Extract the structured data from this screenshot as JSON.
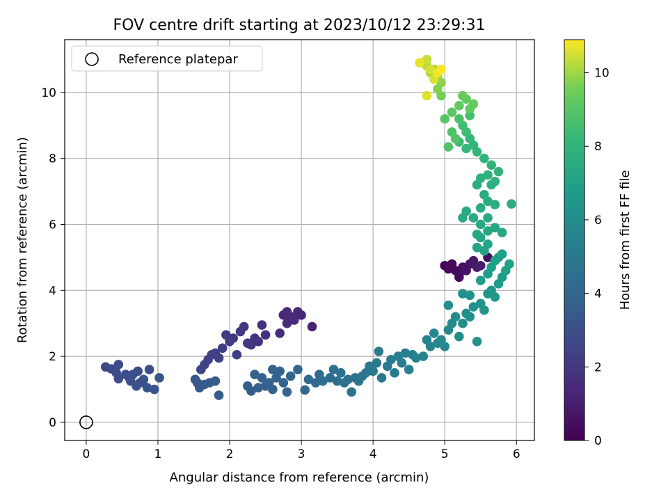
{
  "chart_data": {
    "type": "scatter",
    "title": "FOV centre drift starting at 2023/10/12 23:29:31",
    "xlabel": "Angular distance from reference (arcmin)",
    "ylabel": "Rotation from reference (arcmin)",
    "xlim": [
      -0.3,
      6.25
    ],
    "ylim": [
      -0.55,
      11.6
    ],
    "xticks": [
      0,
      1,
      2,
      3,
      4,
      5,
      6
    ],
    "yticks": [
      0,
      2,
      4,
      6,
      8,
      10
    ],
    "grid": true,
    "legend": {
      "placement": "top-left",
      "entries": [
        "Reference platepar"
      ]
    },
    "reference_point": {
      "x": 0,
      "y": 0,
      "label": "Reference platepar"
    },
    "colorbar": {
      "label": "Hours from first FF file",
      "range": [
        0,
        10.9
      ],
      "ticks": [
        0,
        2,
        4,
        6,
        8,
        10
      ],
      "colormap": "viridis"
    },
    "points_xyc": [
      [
        5.0,
        4.75,
        0.1
      ],
      [
        5.1,
        4.8,
        0.2
      ],
      [
        5.15,
        4.6,
        0.3
      ],
      [
        5.2,
        4.5,
        0.4
      ],
      [
        5.25,
        4.7,
        0.5
      ],
      [
        5.3,
        4.6,
        0.6
      ],
      [
        5.35,
        4.8,
        0.7
      ],
      [
        5.4,
        4.9,
        0.8
      ],
      [
        5.45,
        4.7,
        0.9
      ],
      [
        5.5,
        4.75,
        1.0
      ],
      [
        5.6,
        5.0,
        0.5
      ],
      [
        5.2,
        4.4,
        0.3
      ],
      [
        5.05,
        4.65,
        0.2
      ],
      [
        3.15,
        2.9,
        1.2
      ],
      [
        3.0,
        3.25,
        1.3
      ],
      [
        2.95,
        3.35,
        1.35
      ],
      [
        2.85,
        3.2,
        1.4
      ],
      [
        2.8,
        3.35,
        1.45
      ],
      [
        2.75,
        3.25,
        1.5
      ],
      [
        2.8,
        3.0,
        1.55
      ],
      [
        2.7,
        2.7,
        1.6
      ],
      [
        2.9,
        3.1,
        1.5
      ],
      [
        2.5,
        2.65,
        1.7
      ],
      [
        2.45,
        2.95,
        1.75
      ],
      [
        2.4,
        2.45,
        1.8
      ],
      [
        2.35,
        2.55,
        1.85
      ],
      [
        2.3,
        2.35,
        1.9
      ],
      [
        2.25,
        2.4,
        1.95
      ],
      [
        2.2,
        2.9,
        2.0
      ],
      [
        2.15,
        2.75,
        2.05
      ],
      [
        2.05,
        2.55,
        2.1
      ],
      [
        1.95,
        2.65,
        2.15
      ],
      [
        2.0,
        2.45,
        2.2
      ],
      [
        2.1,
        2.05,
        2.25
      ],
      [
        1.9,
        2.25,
        2.3
      ],
      [
        1.85,
        1.95,
        2.35
      ],
      [
        1.75,
        2.05,
        2.4
      ],
      [
        1.7,
        1.9,
        2.45
      ],
      [
        1.65,
        1.75,
        2.5
      ],
      [
        1.6,
        1.6,
        2.55
      ],
      [
        1.8,
        2.1,
        2.4
      ],
      [
        0.27,
        1.68,
        2.6
      ],
      [
        0.35,
        1.62,
        2.65
      ],
      [
        0.45,
        1.75,
        2.7
      ],
      [
        0.42,
        1.5,
        2.75
      ],
      [
        0.45,
        1.32,
        2.8
      ],
      [
        0.55,
        1.45,
        2.85
      ],
      [
        0.6,
        1.35,
        2.9
      ],
      [
        0.62,
        1.25,
        2.95
      ],
      [
        0.7,
        1.1,
        3.0
      ],
      [
        0.72,
        1.55,
        2.9
      ],
      [
        0.75,
        1.2,
        3.05
      ],
      [
        0.8,
        1.3,
        3.1
      ],
      [
        0.85,
        1.05,
        3.15
      ],
      [
        0.88,
        1.6,
        2.9
      ],
      [
        0.95,
        1.0,
        3.2
      ],
      [
        1.02,
        1.35,
        3.25
      ],
      [
        0.65,
        1.45,
        2.9
      ],
      [
        1.52,
        1.3,
        3.3
      ],
      [
        1.55,
        1.2,
        3.35
      ],
      [
        1.58,
        1.05,
        3.4
      ],
      [
        1.65,
        1.15,
        3.45
      ],
      [
        1.72,
        1.2,
        3.5
      ],
      [
        1.8,
        1.25,
        3.5
      ],
      [
        1.85,
        0.82,
        3.55
      ],
      [
        2.25,
        1.1,
        3.6
      ],
      [
        2.3,
        0.95,
        3.65
      ],
      [
        2.4,
        1.05,
        3.7
      ],
      [
        2.45,
        1.35,
        3.7
      ],
      [
        2.5,
        1.1,
        3.75
      ],
      [
        2.55,
        1.2,
        3.8
      ],
      [
        2.6,
        1.0,
        3.85
      ],
      [
        2.65,
        1.35,
        3.85
      ],
      [
        2.7,
        1.55,
        3.9
      ],
      [
        2.75,
        1.2,
        3.95
      ],
      [
        2.8,
        0.92,
        4.0
      ],
      [
        2.6,
        1.6,
        3.9
      ],
      [
        2.35,
        1.45,
        3.75
      ],
      [
        2.85,
        1.4,
        4.0
      ],
      [
        2.95,
        1.6,
        4.05
      ],
      [
        3.05,
        0.98,
        4.1
      ],
      [
        3.1,
        1.3,
        4.15
      ],
      [
        3.2,
        1.2,
        4.2
      ],
      [
        3.25,
        1.45,
        4.25
      ],
      [
        3.3,
        1.25,
        4.3
      ],
      [
        3.4,
        1.35,
        4.35
      ],
      [
        3.45,
        1.6,
        4.4
      ],
      [
        3.5,
        1.25,
        4.45
      ],
      [
        3.55,
        1.5,
        4.5
      ],
      [
        3.6,
        1.2,
        4.55
      ],
      [
        3.65,
        1.3,
        4.6
      ],
      [
        3.7,
        0.92,
        4.6
      ],
      [
        3.75,
        1.35,
        4.65
      ],
      [
        3.8,
        1.25,
        4.7
      ],
      [
        3.85,
        1.4,
        4.75
      ],
      [
        3.9,
        1.5,
        4.8
      ],
      [
        3.95,
        1.7,
        4.85
      ],
      [
        4.0,
        1.55,
        4.9
      ],
      [
        4.05,
        1.8,
        4.95
      ],
      [
        4.08,
        2.15,
        5.0
      ],
      [
        4.12,
        1.35,
        5.0
      ],
      [
        4.2,
        1.7,
        5.05
      ],
      [
        4.25,
        1.9,
        5.1
      ],
      [
        4.3,
        1.5,
        5.15
      ],
      [
        4.35,
        2.0,
        5.2
      ],
      [
        4.4,
        1.8,
        5.25
      ],
      [
        4.45,
        2.1,
        5.3
      ],
      [
        4.5,
        1.6,
        5.35
      ],
      [
        4.55,
        2.05,
        5.4
      ],
      [
        4.6,
        1.95,
        5.45
      ],
      [
        4.7,
        2.0,
        5.5
      ],
      [
        4.75,
        2.5,
        5.55
      ],
      [
        4.8,
        2.3,
        5.6
      ],
      [
        4.85,
        2.7,
        5.65
      ],
      [
        4.9,
        2.4,
        5.7
      ],
      [
        4.95,
        2.5,
        5.75
      ],
      [
        5.0,
        2.3,
        5.8
      ],
      [
        5.05,
        2.8,
        5.85
      ],
      [
        5.1,
        3.0,
        5.9
      ],
      [
        5.15,
        3.2,
        5.95
      ],
      [
        5.2,
        2.6,
        6.0
      ],
      [
        5.25,
        3.0,
        6.05
      ],
      [
        5.3,
        3.3,
        6.1
      ],
      [
        5.35,
        3.2,
        6.15
      ],
      [
        5.4,
        3.5,
        6.2
      ],
      [
        5.45,
        2.45,
        6.25
      ],
      [
        5.5,
        3.6,
        6.3
      ],
      [
        5.55,
        3.4,
        6.35
      ],
      [
        5.6,
        3.9,
        6.4
      ],
      [
        5.65,
        4.0,
        6.45
      ],
      [
        5.7,
        3.8,
        6.5
      ],
      [
        5.75,
        4.2,
        6.55
      ],
      [
        5.8,
        4.4,
        6.6
      ],
      [
        5.35,
        3.85,
        6.3
      ],
      [
        5.05,
        3.55,
        6.05
      ],
      [
        5.25,
        3.9,
        6.15
      ],
      [
        5.5,
        4.3,
        6.7
      ],
      [
        5.6,
        4.5,
        6.75
      ],
      [
        5.65,
        4.7,
        6.8
      ],
      [
        5.7,
        4.9,
        6.85
      ],
      [
        5.75,
        5.0,
        6.9
      ],
      [
        5.8,
        5.1,
        6.95
      ],
      [
        5.9,
        4.8,
        7.0
      ],
      [
        5.85,
        4.6,
        7.0
      ],
      [
        5.55,
        5.2,
        7.05
      ],
      [
        5.45,
        5.3,
        7.1
      ],
      [
        5.6,
        5.4,
        7.15
      ],
      [
        5.5,
        5.6,
        7.2
      ],
      [
        5.6,
        5.8,
        7.25
      ],
      [
        5.7,
        5.9,
        7.3
      ],
      [
        5.8,
        5.75,
        7.3
      ],
      [
        5.5,
        6.0,
        7.35
      ],
      [
        5.4,
        6.2,
        7.4
      ],
      [
        5.45,
        5.7,
        7.4
      ],
      [
        5.6,
        6.2,
        7.45
      ],
      [
        5.5,
        6.5,
        7.5
      ],
      [
        5.6,
        6.7,
        7.55
      ],
      [
        5.7,
        6.6,
        7.6
      ],
      [
        5.55,
        6.9,
        7.65
      ],
      [
        5.65,
        7.2,
        7.7
      ],
      [
        5.5,
        7.4,
        7.75
      ],
      [
        5.6,
        7.5,
        7.8
      ],
      [
        5.7,
        7.3,
        7.85
      ],
      [
        5.75,
        7.6,
        7.9
      ],
      [
        5.65,
        7.8,
        7.95
      ],
      [
        5.55,
        8.0,
        8.0
      ],
      [
        5.45,
        8.2,
        8.05
      ],
      [
        5.4,
        8.4,
        8.1
      ],
      [
        5.3,
        8.3,
        8.15
      ],
      [
        5.35,
        8.6,
        8.2
      ],
      [
        5.93,
        6.62,
        7.6
      ],
      [
        5.3,
        6.4,
        7.5
      ],
      [
        5.25,
        6.2,
        7.45
      ],
      [
        5.45,
        7.2,
        7.7
      ],
      [
        5.2,
        8.5,
        8.3
      ],
      [
        5.3,
        8.8,
        8.4
      ],
      [
        5.25,
        9.0,
        8.5
      ],
      [
        5.35,
        9.3,
        8.6
      ],
      [
        5.2,
        9.2,
        8.7
      ],
      [
        5.1,
        8.8,
        8.8
      ],
      [
        5.05,
        8.35,
        8.85
      ],
      [
        5.15,
        8.6,
        8.9
      ],
      [
        5.0,
        9.2,
        9.0
      ],
      [
        5.1,
        9.4,
        9.1
      ],
      [
        5.2,
        9.6,
        9.2
      ],
      [
        5.3,
        9.8,
        9.3
      ],
      [
        5.25,
        9.9,
        9.4
      ],
      [
        5.4,
        9.65,
        9.3
      ],
      [
        5.35,
        9.5,
        9.2
      ],
      [
        4.95,
        9.9,
        9.6
      ],
      [
        4.9,
        10.1,
        9.7
      ],
      [
        4.95,
        10.3,
        9.8
      ],
      [
        4.9,
        10.5,
        9.9
      ],
      [
        4.85,
        10.7,
        10.0
      ],
      [
        4.8,
        10.6,
        10.1
      ],
      [
        4.75,
        10.8,
        10.2
      ],
      [
        4.7,
        10.9,
        10.3
      ],
      [
        4.75,
        11.0,
        10.4
      ],
      [
        4.8,
        10.7,
        10.5
      ],
      [
        4.85,
        10.4,
        10.55
      ],
      [
        4.75,
        9.9,
        10.6
      ],
      [
        4.65,
        10.9,
        10.7
      ],
      [
        4.9,
        10.6,
        10.8
      ],
      [
        4.95,
        10.7,
        10.9
      ]
    ]
  }
}
